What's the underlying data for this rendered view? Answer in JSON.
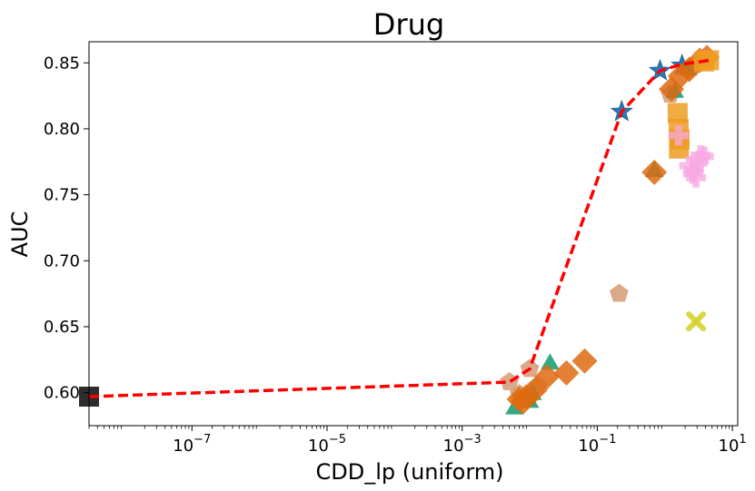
{
  "chart_data": {
    "type": "scatter",
    "title": "Drug",
    "xlabel": "CDD_lp (uniform)",
    "ylabel": "AUC",
    "xscale": "log",
    "xlim": [
      3e-09,
      12
    ],
    "ylim": [
      0.575,
      0.866
    ],
    "x_ticks": [
      {
        "value": 1e-07,
        "base": "10",
        "exp": "−7"
      },
      {
        "value": 1e-05,
        "base": "10",
        "exp": "−5"
      },
      {
        "value": 0.001,
        "base": "10",
        "exp": "−3"
      },
      {
        "value": 0.1,
        "base": "10",
        "exp": "−1"
      },
      {
        "value": 10,
        "base": "10",
        "exp": "1"
      }
    ],
    "y_ticks": [
      {
        "value": 0.6,
        "label": "0.60"
      },
      {
        "value": 0.65,
        "label": "0.65"
      },
      {
        "value": 0.7,
        "label": "0.70"
      },
      {
        "value": 0.75,
        "label": "0.75"
      },
      {
        "value": 0.8,
        "label": "0.80"
      },
      {
        "value": 0.85,
        "label": "0.85"
      }
    ],
    "frontier": {
      "color": "#ff0000",
      "style": "dashed",
      "x": [
        3e-09,
        0.005,
        0.01,
        0.23,
        0.85,
        1.8,
        3.5,
        4.5
      ],
      "y": [
        0.597,
        0.608,
        0.618,
        0.813,
        0.844,
        0.849,
        0.851,
        0.852
      ]
    },
    "series": [
      {
        "name": "square-black",
        "marker": "square",
        "color": "#222222",
        "opacity": 0.95,
        "x": [
          3e-09
        ],
        "y": [
          0.597
        ]
      },
      {
        "name": "star-blue",
        "marker": "star",
        "color": "#2a7ab8",
        "opacity": 1,
        "x": [
          0.23,
          0.85,
          1.8
        ],
        "y": [
          0.813,
          0.844,
          0.848
        ]
      },
      {
        "name": "pentagon-tan",
        "marker": "pentagon",
        "color": "#d1946b",
        "opacity": 0.8,
        "x": [
          0.005,
          0.01,
          0.013,
          0.007,
          0.0095,
          0.21,
          1.2
        ],
        "y": [
          0.608,
          0.618,
          0.605,
          0.599,
          0.596,
          0.675,
          0.826
        ]
      },
      {
        "name": "triangle-green",
        "marker": "triangle",
        "color": "#1f9e78",
        "opacity": 0.9,
        "x": [
          0.006,
          0.01,
          0.011,
          0.02,
          0.7,
          1.4,
          2.2,
          3.6
        ],
        "y": [
          0.589,
          0.594,
          0.6,
          0.623,
          0.769,
          0.829,
          0.846,
          0.852
        ]
      },
      {
        "name": "diamond-orange",
        "marker": "diamond",
        "color": "#de6a10",
        "opacity": 0.85,
        "x": [
          0.007,
          0.008,
          0.009,
          0.012,
          0.018,
          0.035,
          0.065,
          0.7,
          1.25,
          1.7,
          2.3,
          3.3,
          4.2
        ],
        "y": [
          0.595,
          0.593,
          0.597,
          0.602,
          0.612,
          0.615,
          0.624,
          0.767,
          0.83,
          0.84,
          0.845,
          0.852,
          0.854
        ]
      },
      {
        "name": "square-amber",
        "marker": "square",
        "color": "#ee9c22",
        "opacity": 0.85,
        "x": [
          1.55,
          1.6,
          1.65,
          1.62,
          3.8,
          4.5
        ],
        "y": [
          0.812,
          0.8,
          0.792,
          0.785,
          0.851,
          0.852
        ]
      },
      {
        "name": "plus-pink",
        "marker": "plus",
        "color": "#f7a8e0",
        "opacity": 0.75,
        "x": [
          1.6,
          2.3,
          2.6,
          2.9,
          3.2,
          3.4,
          3.8,
          2.7
        ],
        "y": [
          0.795,
          0.772,
          0.766,
          0.763,
          0.776,
          0.78,
          0.779,
          0.769
        ]
      },
      {
        "name": "x-yellow",
        "marker": "x",
        "color": "#d6d22e",
        "opacity": 0.9,
        "x": [
          2.9
        ],
        "y": [
          0.654
        ]
      }
    ]
  }
}
